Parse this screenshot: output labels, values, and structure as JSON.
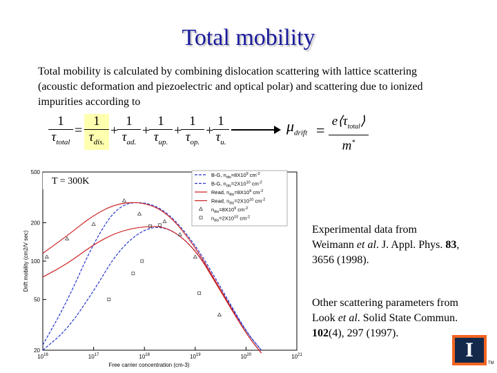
{
  "slide": {
    "title": "Total mobility",
    "intro": "Total mobility is calculated by combining dislocation scattering with lattice scattering (acoustic deformation and piezoelectric and optical polar) and scattering due to ionized impurities according to",
    "equation": {
      "numerator": "1",
      "terms": [
        {
          "tau": "τ",
          "sub": "total"
        },
        {
          "tau": "τ",
          "sub": "dis."
        },
        {
          "tau": "τ",
          "sub": "ad."
        },
        {
          "tau": "τ",
          "sub": "up."
        },
        {
          "tau": "τ",
          "sub": "op."
        },
        {
          "tau": "τ",
          "sub": "u."
        }
      ],
      "equals": "=",
      "plus": "+",
      "mobility_symbol": "μ",
      "mobility_sub": "drift",
      "mobility_numerator": "e⟨τ",
      "mobility_numerator_sub": "total",
      "mobility_numerator_close": "⟩",
      "mobility_denominator": "m",
      "mobility_denominator_sup": "*"
    },
    "temperature_label": "T = 300K",
    "note_experimental": {
      "line1": "Experimental data from",
      "line2_prefix": "Weimann ",
      "line2_italic": "et al",
      "line2_suffix": ". J. Appl. Phys. ",
      "line2_bold": "83",
      "line2_end": ",",
      "line3": "3656 (1998)."
    },
    "note_parameters": {
      "line1": "Other scattering parameters from",
      "line2_prefix": "Look ",
      "line2_italic": "et al",
      "line2_suffix": ". Solid State Commun.",
      "line3_bold": "102",
      "line3_rest": "(4), 297 (1997)."
    },
    "logo_letter": "I",
    "logo_tm": "TM"
  },
  "chart_data": {
    "type": "line",
    "xscale": "log",
    "yscale": "log",
    "xlim": [
      1e+16,
      1e+21
    ],
    "ylim": [
      20,
      500
    ],
    "xlabel": "Free carrier concentration (cm-3)",
    "ylabel": "Drift mobility (cm2/V sec)",
    "xticks": [
      {
        "v": 1e+16,
        "mant": "10",
        "exp": "16"
      },
      {
        "v": 1e+17,
        "mant": "10",
        "exp": "17"
      },
      {
        "v": 1e+18,
        "mant": "10",
        "exp": "18"
      },
      {
        "v": 1e+19,
        "mant": "10",
        "exp": "19"
      },
      {
        "v": 1e+20,
        "mant": "10",
        "exp": "20"
      },
      {
        "v": 1e+21,
        "mant": "10",
        "exp": "21"
      }
    ],
    "yticks": [
      {
        "v": 20,
        "label": "20"
      },
      {
        "v": 50,
        "label": "50"
      },
      {
        "v": 100,
        "label": "100"
      },
      {
        "v": 200,
        "label": "200"
      },
      {
        "v": 500,
        "label": "500"
      }
    ],
    "legend_position": "top-right",
    "legend_entries": [
      {
        "style": "dash",
        "color": "#2233cc",
        "text": "B-G, n",
        "sub": "dis",
        "rest": "=8X10",
        "sup": "9",
        "unit": " cm",
        "unit_sup": "-2"
      },
      {
        "style": "dash",
        "color": "#2233cc",
        "text": "B-G, n",
        "sub": "dis",
        "rest": "=2X10",
        "sup": "10",
        "unit": " cm",
        "unit_sup": "-2"
      },
      {
        "style": "solid",
        "color": "#cc2222",
        "text": "Read, n",
        "sub": "dis",
        "rest": "=8X10",
        "sup": "9",
        "unit": " cm",
        "unit_sup": "-2"
      },
      {
        "style": "solid",
        "color": "#cc2222",
        "text": "Read, n",
        "sub": "dis",
        "rest": "=2X10",
        "sup": "10",
        "unit": " cm",
        "unit_sup": "-2"
      },
      {
        "style": "triangle",
        "color": "#444444",
        "text": "n",
        "sub": "dis",
        "rest": "=8X10",
        "sup": "9",
        "unit": " cm",
        "unit_sup": "-2"
      },
      {
        "style": "square",
        "color": "#444444",
        "text": "n",
        "sub": "dis",
        "rest": "=2X10",
        "sup": "10",
        "unit": " cm",
        "unit_sup": "-2"
      }
    ],
    "series": [
      {
        "style": "dash",
        "color": "#2233cc",
        "x": [
          1e+16,
          3e+16,
          1e+17,
          3e+17,
          1e+18,
          3e+18,
          1e+19,
          3e+19,
          1e+20,
          2e+20
        ],
        "y": [
          22,
          48,
          140,
          275,
          295,
          240,
          135,
          65,
          28,
          20
        ]
      },
      {
        "style": "dash",
        "color": "#2233cc",
        "x": [
          1e+16,
          3e+16,
          1e+17,
          3e+17,
          1e+18,
          3e+18,
          1e+19,
          3e+19,
          1e+20,
          2e+20
        ],
        "y": [
          20,
          29,
          58,
          120,
          182,
          185,
          125,
          62,
          28,
          20
        ]
      },
      {
        "style": "solid",
        "color": "#cc2222",
        "x": [
          1e+16,
          3e+16,
          1e+17,
          3e+17,
          1e+18,
          3e+18,
          1e+19,
          3e+19,
          1e+20,
          2e+20
        ],
        "y": [
          115,
          158,
          230,
          285,
          290,
          235,
          130,
          62,
          27,
          19
        ]
      },
      {
        "style": "solid",
        "color": "#cc2222",
        "x": [
          1e+16,
          3e+16,
          1e+17,
          3e+17,
          1e+18,
          3e+18,
          1e+19,
          3e+19,
          1e+20,
          2e+20
        ],
        "y": [
          75,
          95,
          135,
          170,
          188,
          185,
          125,
          60,
          27,
          19
        ]
      },
      {
        "style": "triangle",
        "color": "#444444",
        "x": [
          1.2e+16,
          3e+16,
          1e+17,
          4e+17,
          8e+17,
          2.5e+18,
          5e+18,
          1e+19,
          3e+19
        ],
        "y": [
          108,
          150,
          195,
          298,
          235,
          205,
          162,
          108,
          38
        ]
      },
      {
        "style": "square",
        "color": "#444444",
        "x": [
          2e+17,
          6e+17,
          9e+17,
          1.3e+18,
          2e+18,
          1.2e+19
        ],
        "y": [
          50,
          80,
          100,
          188,
          192,
          56
        ]
      }
    ]
  }
}
